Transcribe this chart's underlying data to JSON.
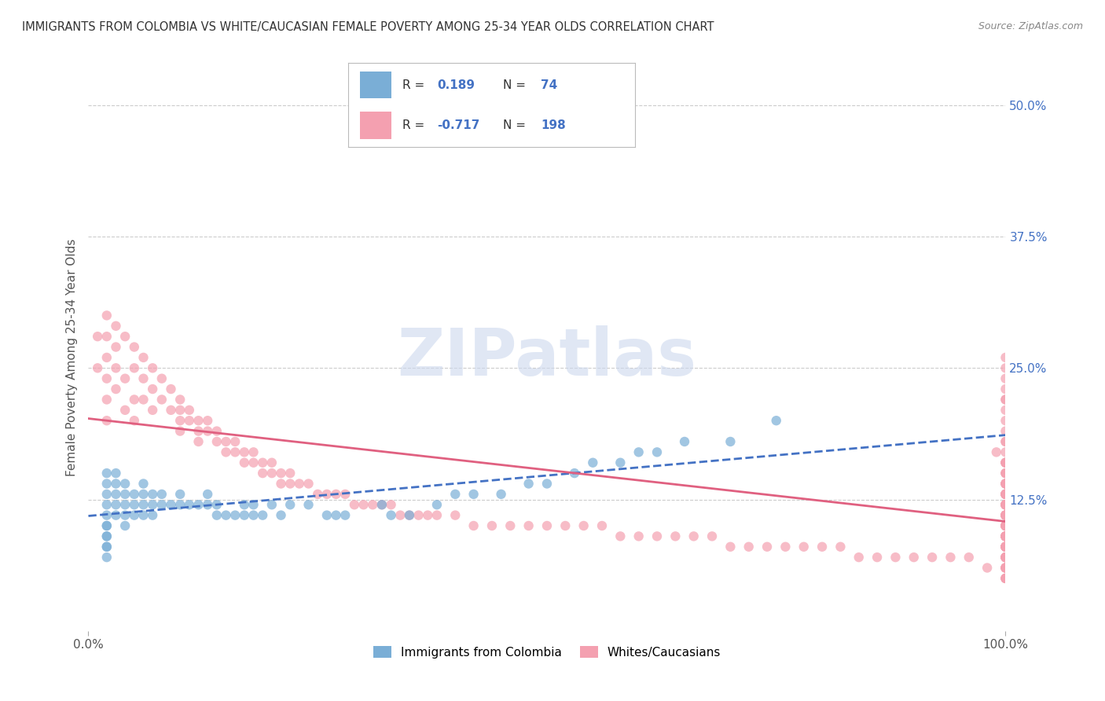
{
  "title": "IMMIGRANTS FROM COLOMBIA VS WHITE/CAUCASIAN FEMALE POVERTY AMONG 25-34 YEAR OLDS CORRELATION CHART",
  "source": "Source: ZipAtlas.com",
  "xlabel": "",
  "ylabel": "Female Poverty Among 25-34 Year Olds",
  "xlim": [
    0,
    100
  ],
  "ylim": [
    0,
    52
  ],
  "yticks": [
    0,
    12.5,
    25.0,
    37.5,
    50.0
  ],
  "xticks": [
    0,
    100
  ],
  "xticklabels": [
    "0.0%",
    "100.0%"
  ],
  "blue_R": 0.189,
  "blue_N": 74,
  "pink_R": -0.717,
  "pink_N": 198,
  "blue_color": "#7aaed6",
  "pink_color": "#f4a0b0",
  "blue_line_color": "#4472c4",
  "pink_line_color": "#e06080",
  "legend_label_blue": "Immigrants from Colombia",
  "legend_label_pink": "Whites/Caucasians",
  "watermark": "ZIPatlas",
  "background_color": "#ffffff",
  "grid_color": "#cccccc",
  "title_color": "#333333",
  "axis_color": "#4472c4",
  "blue_scatter_x": [
    2,
    2,
    2,
    2,
    2,
    2,
    2,
    2,
    2,
    2,
    2,
    2,
    3,
    3,
    3,
    3,
    3,
    4,
    4,
    4,
    4,
    4,
    5,
    5,
    5,
    6,
    6,
    6,
    6,
    7,
    7,
    7,
    8,
    8,
    9,
    10,
    10,
    11,
    12,
    13,
    13,
    14,
    14,
    15,
    16,
    17,
    17,
    18,
    18,
    19,
    20,
    21,
    22,
    24,
    26,
    27,
    28,
    32,
    33,
    35,
    38,
    40,
    42,
    45,
    48,
    50,
    53,
    55,
    58,
    60,
    62,
    65,
    70,
    75
  ],
  "blue_scatter_y": [
    15,
    14,
    13,
    12,
    11,
    10,
    10,
    9,
    9,
    8,
    8,
    7,
    15,
    14,
    13,
    12,
    11,
    14,
    13,
    12,
    11,
    10,
    13,
    12,
    11,
    14,
    13,
    12,
    11,
    13,
    12,
    11,
    13,
    12,
    12,
    13,
    12,
    12,
    12,
    12,
    13,
    12,
    11,
    11,
    11,
    12,
    11,
    12,
    11,
    11,
    12,
    11,
    12,
    12,
    11,
    11,
    11,
    12,
    11,
    11,
    12,
    13,
    13,
    13,
    14,
    14,
    15,
    16,
    16,
    17,
    17,
    18,
    18,
    20
  ],
  "pink_scatter_x": [
    1,
    1,
    2,
    2,
    2,
    2,
    2,
    2,
    3,
    3,
    3,
    3,
    4,
    4,
    4,
    5,
    5,
    5,
    5,
    6,
    6,
    6,
    7,
    7,
    7,
    8,
    8,
    9,
    9,
    10,
    10,
    10,
    10,
    11,
    11,
    12,
    12,
    12,
    13,
    13,
    14,
    14,
    15,
    15,
    16,
    16,
    17,
    17,
    18,
    18,
    19,
    19,
    20,
    20,
    21,
    21,
    22,
    22,
    23,
    24,
    25,
    26,
    27,
    28,
    29,
    30,
    31,
    32,
    33,
    34,
    35,
    36,
    37,
    38,
    40,
    42,
    44,
    46,
    48,
    50,
    52,
    54,
    56,
    58,
    60,
    62,
    64,
    66,
    68,
    70,
    72,
    74,
    76,
    78,
    80,
    82,
    84,
    86,
    88,
    90,
    92,
    94,
    96,
    98,
    99,
    100,
    100,
    100,
    100,
    100,
    100,
    100,
    100,
    100,
    100,
    100,
    100,
    100,
    100,
    100,
    100,
    100,
    100,
    100,
    100,
    100,
    100,
    100,
    100,
    100,
    100,
    100,
    100,
    100,
    100,
    100,
    100,
    100,
    100,
    100,
    100,
    100,
    100,
    100,
    100,
    100,
    100,
    100,
    100,
    100,
    100,
    100,
    100,
    100,
    100,
    100,
    100,
    100,
    100,
    100,
    100,
    100,
    100,
    100,
    100,
    100,
    100,
    100,
    100,
    100,
    100,
    100,
    100,
    100,
    100,
    100,
    100,
    100,
    100,
    100,
    100,
    100,
    100,
    100,
    100,
    100,
    100,
    100,
    100,
    100,
    100,
    100,
    100,
    100,
    100,
    100,
    100,
    100
  ],
  "pink_scatter_y": [
    28,
    25,
    30,
    28,
    26,
    24,
    22,
    20,
    29,
    27,
    25,
    23,
    28,
    24,
    21,
    27,
    25,
    22,
    20,
    26,
    24,
    22,
    25,
    23,
    21,
    24,
    22,
    23,
    21,
    22,
    21,
    20,
    19,
    21,
    20,
    20,
    19,
    18,
    20,
    19,
    19,
    18,
    18,
    17,
    18,
    17,
    17,
    16,
    17,
    16,
    16,
    15,
    16,
    15,
    15,
    14,
    15,
    14,
    14,
    14,
    13,
    13,
    13,
    13,
    12,
    12,
    12,
    12,
    12,
    11,
    11,
    11,
    11,
    11,
    11,
    10,
    10,
    10,
    10,
    10,
    10,
    10,
    10,
    9,
    9,
    9,
    9,
    9,
    9,
    8,
    8,
    8,
    8,
    8,
    8,
    8,
    7,
    7,
    7,
    7,
    7,
    7,
    7,
    6,
    17,
    16,
    25,
    24,
    23,
    22,
    21,
    20,
    19,
    18,
    17,
    16,
    15,
    14,
    13,
    12,
    11,
    10,
    9,
    8,
    7,
    26,
    22,
    18,
    16,
    14,
    13,
    12,
    11,
    10,
    9,
    8,
    7,
    15,
    13,
    12,
    11,
    10,
    9,
    8,
    16,
    14,
    13,
    12,
    11,
    10,
    9,
    8,
    7,
    6,
    15,
    13,
    12,
    11,
    10,
    9,
    8,
    7,
    6,
    5,
    14,
    13,
    12,
    11,
    10,
    9,
    8,
    7,
    6,
    5,
    14,
    13,
    12,
    11,
    10,
    9,
    8,
    7,
    6,
    5,
    13,
    12,
    11,
    10,
    9,
    8,
    7,
    6,
    5,
    12,
    11,
    10,
    9,
    8
  ]
}
